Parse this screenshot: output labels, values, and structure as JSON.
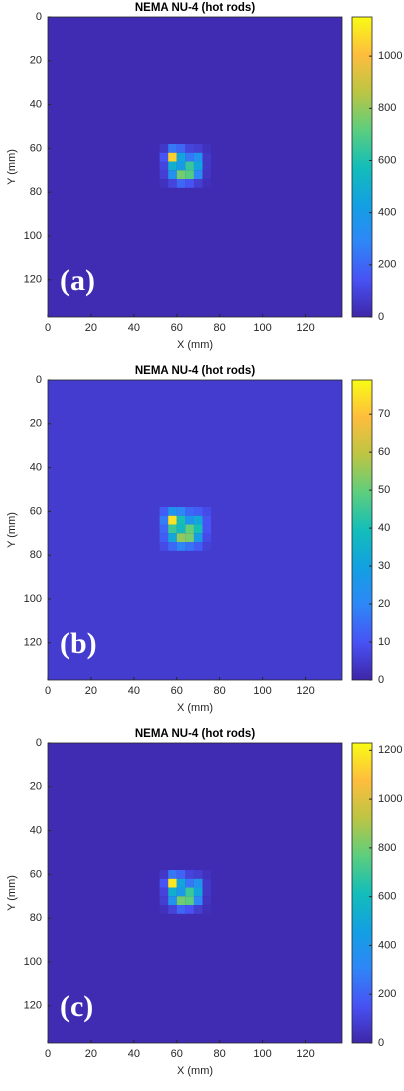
{
  "chart_data": [
    {
      "type": "heatmap",
      "title": "NEMA NU-4 (hot rods)",
      "xlabel": "X (mm)",
      "ylabel": "Y (mm)",
      "annotation": "(a)",
      "colormap": "parula",
      "y_direction": "reverse",
      "xlim": [
        0,
        137
      ],
      "ylim": [
        0,
        137
      ],
      "xticks": [
        0,
        20,
        40,
        60,
        80,
        100,
        120
      ],
      "yticks": [
        0,
        20,
        40,
        60,
        80,
        100,
        120
      ],
      "background": 20,
      "x_edges": [
        52,
        56,
        60,
        64,
        68,
        72,
        76
      ],
      "y_edges": [
        58,
        62,
        66,
        70,
        74,
        78
      ],
      "values": [
        [
          60,
          250,
          200,
          100,
          80,
          40
        ],
        [
          150,
          1050,
          450,
          250,
          350,
          60
        ],
        [
          100,
          500,
          400,
          650,
          450,
          60
        ],
        [
          80,
          350,
          750,
          700,
          300,
          50
        ],
        [
          40,
          100,
          200,
          150,
          80,
          30
        ]
      ],
      "clim": [
        0,
        1150
      ],
      "cticks": [
        0,
        200,
        400,
        600,
        800,
        1000
      ]
    },
    {
      "type": "heatmap",
      "title": "NEMA NU-4 (hot rods)",
      "xlabel": "X (mm)",
      "ylabel": "Y (mm)",
      "annotation": "(b)",
      "colormap": "parula",
      "y_direction": "reverse",
      "xlim": [
        0,
        137
      ],
      "ylim": [
        0,
        137
      ],
      "xticks": [
        0,
        20,
        40,
        60,
        80,
        100,
        120
      ],
      "yticks": [
        0,
        20,
        40,
        60,
        80,
        100,
        120
      ],
      "background": 5,
      "x_edges": [
        52,
        56,
        60,
        64,
        68,
        72,
        76
      ],
      "y_edges": [
        58,
        62,
        66,
        70,
        74,
        78
      ],
      "values": [
        [
          12,
          25,
          20,
          14,
          12,
          8
        ],
        [
          18,
          75,
          40,
          25,
          32,
          10
        ],
        [
          14,
          45,
          38,
          50,
          40,
          10
        ],
        [
          12,
          32,
          55,
          52,
          28,
          8
        ],
        [
          8,
          14,
          20,
          16,
          12,
          6
        ]
      ],
      "clim": [
        0,
        79
      ],
      "cticks": [
        0,
        10,
        20,
        30,
        40,
        50,
        60,
        70
      ]
    },
    {
      "type": "heatmap",
      "title": "NEMA NU-4 (hot rods)",
      "xlabel": "X (mm)",
      "ylabel": "Y (mm)",
      "annotation": "(c)",
      "colormap": "parula",
      "y_direction": "reverse",
      "xlim": [
        0,
        137
      ],
      "ylim": [
        0,
        137
      ],
      "xticks": [
        0,
        20,
        40,
        60,
        80,
        100,
        120
      ],
      "yticks": [
        0,
        20,
        40,
        60,
        80,
        100,
        120
      ],
      "background": 20,
      "x_edges": [
        52,
        56,
        60,
        64,
        68,
        72,
        76
      ],
      "y_edges": [
        58,
        62,
        66,
        70,
        74,
        78
      ],
      "values": [
        [
          60,
          260,
          210,
          100,
          80,
          40
        ],
        [
          160,
          1180,
          480,
          260,
          380,
          60
        ],
        [
          100,
          540,
          420,
          700,
          480,
          60
        ],
        [
          80,
          370,
          800,
          760,
          320,
          50
        ],
        [
          40,
          100,
          210,
          150,
          80,
          30
        ]
      ],
      "clim": [
        0,
        1230
      ],
      "cticks": [
        0,
        200,
        400,
        600,
        800,
        1000,
        1200
      ]
    }
  ]
}
